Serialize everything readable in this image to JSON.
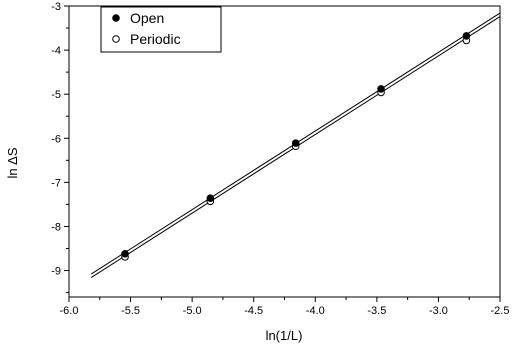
{
  "chart_data": {
    "type": "scatter",
    "title": "",
    "xlabel": "ln(1/L)",
    "ylabel": "ln ΔS",
    "xlim": [
      -6.0,
      -2.5
    ],
    "ylim": [
      -9.6,
      -3.0
    ],
    "x_ticks": [
      -6.0,
      -5.5,
      -5.0,
      -4.5,
      -4.0,
      -3.5,
      -3.0,
      -2.5
    ],
    "x_tick_labels": [
      "-6.0",
      "-5.5",
      "-5.0",
      "-4.5",
      "-4.0",
      "-3.5",
      "-3.0",
      "-2.5"
    ],
    "y_ticks": [
      -9,
      -8,
      -7,
      -6,
      -5,
      -4,
      -3
    ],
    "y_tick_labels": [
      "-9",
      "-8",
      "-7",
      "-6",
      "-5",
      "-4",
      "-3"
    ],
    "grid": false,
    "legend_position": "top-left",
    "series": [
      {
        "name": "Open",
        "marker": "filled-circle",
        "x": [
          -5.545,
          -4.852,
          -4.159,
          -3.466,
          -2.773
        ],
        "y": [
          -8.62,
          -7.36,
          -6.11,
          -4.88,
          -3.68
        ],
        "fit": {
          "x": [
            -5.82,
            -2.5
          ],
          "y": [
            -9.08,
            -3.16
          ]
        }
      },
      {
        "name": "Periodic",
        "marker": "open-circle",
        "x": [
          -5.545,
          -4.852,
          -4.159,
          -3.466,
          -2.773
        ],
        "y": [
          -8.69,
          -7.43,
          -6.18,
          -4.96,
          -3.78
        ],
        "fit": {
          "x": [
            -5.82,
            -2.5
          ],
          "y": [
            -9.16,
            -3.24
          ]
        }
      }
    ]
  }
}
